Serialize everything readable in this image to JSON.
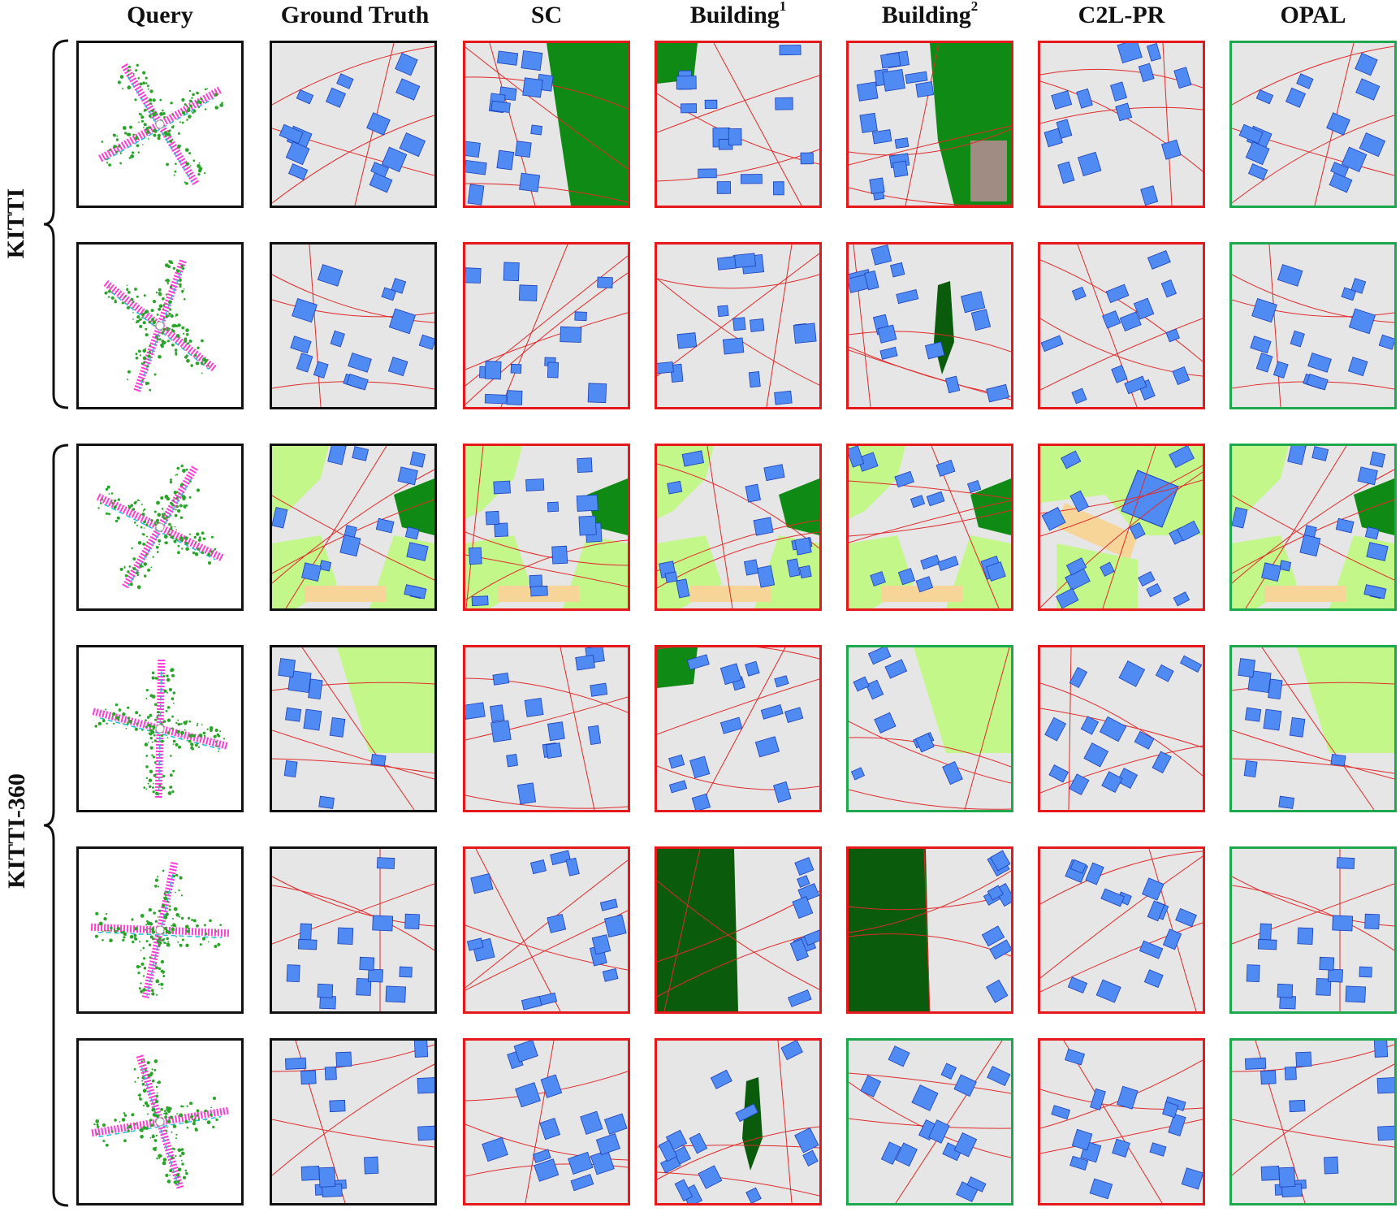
{
  "columns": [
    "Query",
    "Ground Truth",
    "SC",
    "Building",
    "Building",
    "C2L-PR",
    "OPAL"
  ],
  "column_superscripts": [
    "",
    "",
    "",
    "1",
    "2",
    "",
    ""
  ],
  "groups": [
    "KITTI",
    "KITTI-360"
  ],
  "colors": {
    "correct": "#1da84e",
    "incorrect": "#e5191c",
    "reference": "#111111",
    "building": "#4f8bf2",
    "road": "#e02a2a",
    "ground": "#e6e6e6",
    "grass": "#c4f78a",
    "forest": "#0f8a14",
    "dark_forest": "#0a5c0c",
    "parking": "#f7d598",
    "brown_area": "#a08c82"
  },
  "rows": [
    {
      "group": "KITTI",
      "status": [
        "reference",
        "reference",
        "incorrect",
        "incorrect",
        "incorrect",
        "incorrect",
        "correct"
      ]
    },
    {
      "group": "KITTI",
      "status": [
        "reference",
        "reference",
        "incorrect",
        "incorrect",
        "incorrect",
        "incorrect",
        "correct"
      ]
    },
    {
      "group": "KITTI-360",
      "status": [
        "reference",
        "reference",
        "incorrect",
        "incorrect",
        "incorrect",
        "incorrect",
        "correct"
      ]
    },
    {
      "group": "KITTI-360",
      "status": [
        "reference",
        "reference",
        "incorrect",
        "incorrect",
        "correct",
        "incorrect",
        "correct"
      ]
    },
    {
      "group": "KITTI-360",
      "status": [
        "reference",
        "reference",
        "incorrect",
        "incorrect",
        "incorrect",
        "incorrect",
        "correct"
      ]
    },
    {
      "group": "KITTI-360",
      "status": [
        "reference",
        "reference",
        "incorrect",
        "incorrect",
        "correct",
        "incorrect",
        "correct"
      ]
    }
  ]
}
